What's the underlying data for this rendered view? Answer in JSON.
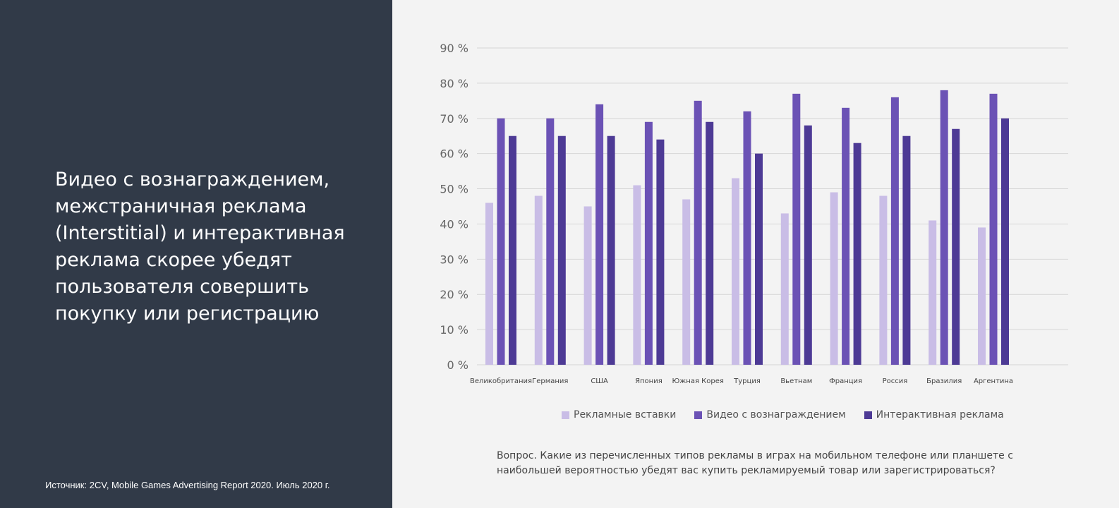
{
  "headline": "Видео с вознаграждением, межстраничная реклама (Interstitial) и интерактивная реклама скорее убедят пользователя совершить покупку или регистрацию",
  "source": "Источник: 2CV, Mobile Games Advertising Report 2020. Июль 2020 г.",
  "question": "Вопрос. Какие из перечисленных типов рекламы в играх на мобильном телефоне или планшете с наибольшей вероятностью убедят вас купить рекламируемый товар или зарегистрироваться?",
  "chart_data": {
    "type": "bar",
    "categories": [
      "Великобритания",
      "Германия",
      "США",
      "Япония",
      "Южная Корея",
      "Турция",
      "Вьетнам",
      "Франция",
      "Россия",
      "Бразилия",
      "Аргентина"
    ],
    "series": [
      {
        "name": "Рекламные вставки",
        "color": "#c9bde6",
        "values": [
          46,
          48,
          45,
          51,
          47,
          53,
          43,
          49,
          48,
          41,
          39
        ]
      },
      {
        "name": "Видео с вознаграждением",
        "color": "#6b52b5",
        "values": [
          70,
          70,
          74,
          69,
          75,
          72,
          77,
          73,
          76,
          78,
          77
        ]
      },
      {
        "name": "Интерактивная реклама",
        "color": "#4d3a95",
        "values": [
          65,
          65,
          65,
          64,
          69,
          60,
          68,
          63,
          65,
          67,
          70
        ]
      }
    ],
    "ylim": [
      0,
      90
    ],
    "yticks": [
      "0 %",
      "10 %",
      "20 %",
      "30 %",
      "40 %",
      "50 %",
      "60 %",
      "70 %",
      "80 %",
      "90 %"
    ],
    "grid": true,
    "legend": "bottom"
  }
}
